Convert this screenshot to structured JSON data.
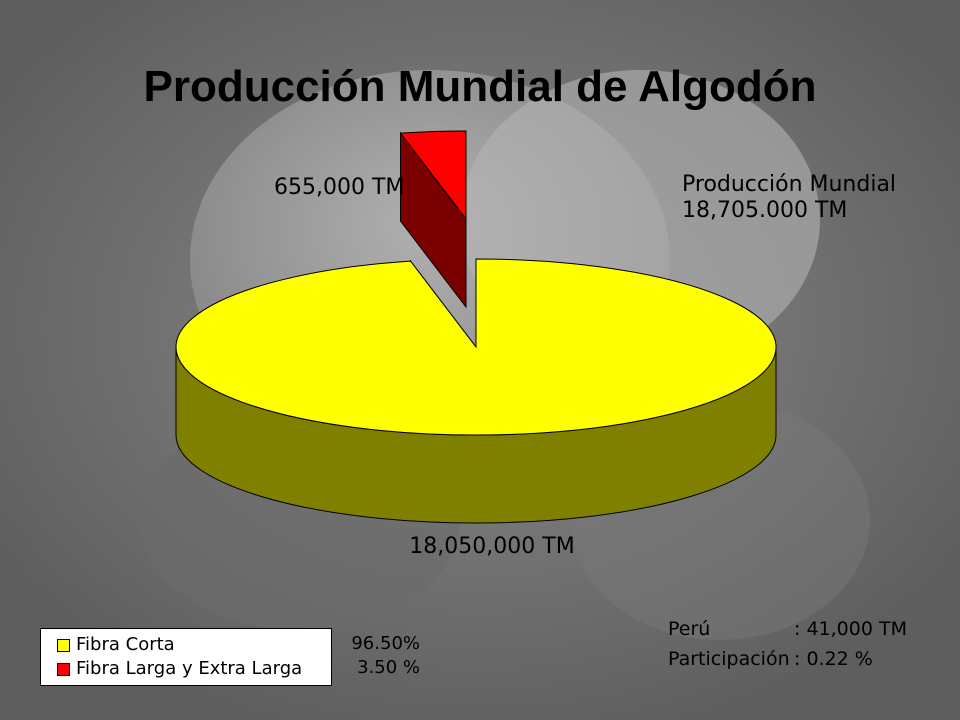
{
  "title": "Producción Mundial de Algodón",
  "world": {
    "label": "Producción Mundial",
    "value": "18,705.000 TM"
  },
  "chart_data": {
    "type": "pie",
    "title": "Producción Mundial de Algodón",
    "slices": [
      {
        "name": "Fibra Corta",
        "value": 18050000,
        "percent": 96.5,
        "label": "18,050,000 TM",
        "color": "#ffff00",
        "side_color": "#7f7f00"
      },
      {
        "name": "Fibra Larga y Extra Larga",
        "value": 655000,
        "percent": 3.5,
        "label": "655,000 TM",
        "color": "#ff0000",
        "side_color": "#7a0000"
      }
    ],
    "legend_position": "bottom-left"
  },
  "labels": {
    "red": "655,000 TM",
    "yellow": "18,050,000 TM"
  },
  "legend": {
    "items": [
      {
        "name": "Fibra Corta",
        "pct": "96.50%",
        "color": "#ffff00"
      },
      {
        "name": "Fibra Larga y Extra Larga",
        "pct": "3.50 %",
        "color": "#ff0000"
      }
    ]
  },
  "peru": {
    "rows": [
      {
        "key": "Perú",
        "value": ": 41,000 TM"
      },
      {
        "key": "Participación",
        "value": ": 0.22 %"
      }
    ]
  }
}
